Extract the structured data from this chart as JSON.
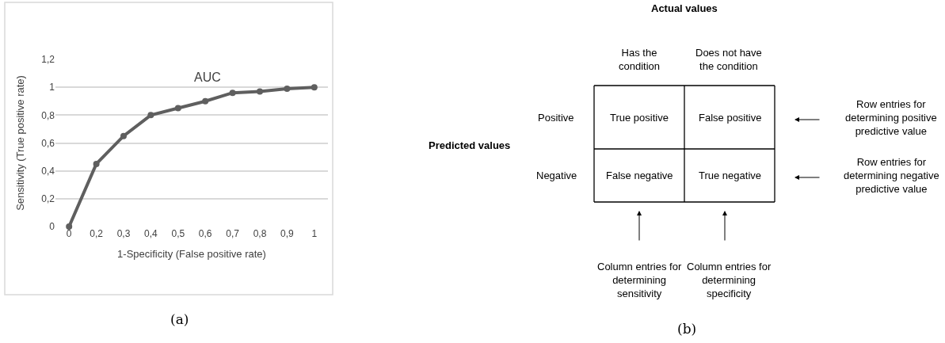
{
  "chart_data": [
    {
      "type": "line",
      "xlabel": "1-Specificity (False positive rate)",
      "ylabel": "Sensitivity (True positive rate)",
      "categories": [
        "0",
        "0,2",
        "0,3",
        "0,4",
        "0,5",
        "0,6",
        "0,7",
        "0,8",
        "0,9",
        "1"
      ],
      "series": [
        {
          "color": "#5f5f5f",
          "values": [
            0,
            0.45,
            0.65,
            0.8,
            0.85,
            0.9,
            0.96,
            0.97,
            0.99,
            1.0
          ]
        }
      ],
      "ylim": [
        0,
        1.2
      ],
      "yticks": [
        0,
        {
          "value": 0.2,
          "label": "0,2"
        },
        {
          "value": 0.4,
          "label": "0,4"
        },
        {
          "value": 0.6,
          "label": "0,6"
        },
        {
          "value": 0.8,
          "label": "0,8"
        },
        1,
        {
          "value": 1.2,
          "label": "1,2"
        }
      ],
      "grid": "y",
      "marker": "circle",
      "line_style": "solid",
      "annotations": [
        "AUC",
        "(a)"
      ]
    },
    {
      "type": "other",
      "title": "Actual values",
      "ylabel": "Predicted values",
      "categories": [
        "Has the condition",
        "Does not have the condition"
      ],
      "y_categories": [
        "Positive",
        "Negative"
      ],
      "cell_labels": [
        [
          "True positive",
          "False positive"
        ],
        [
          "False negative",
          "True negative"
        ]
      ],
      "annotations": [
        "Row entries for determining positive predictive value",
        "Row entries for determining negative predictive value",
        "Column entries for determining sensitivity",
        "Column entries for determining specificity",
        "(b)"
      ]
    }
  ]
}
